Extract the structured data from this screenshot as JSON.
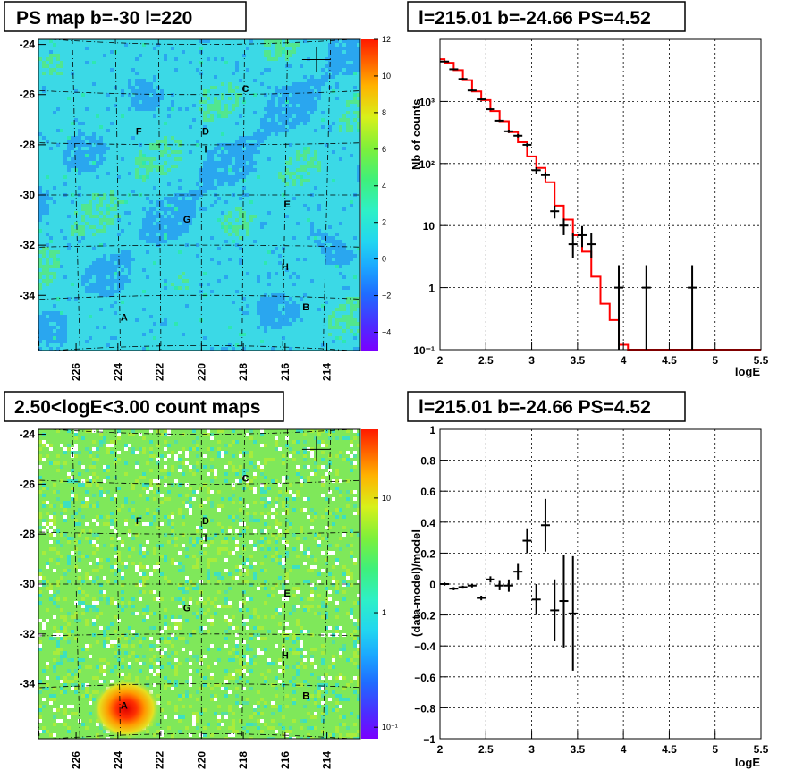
{
  "colors": {
    "map_bg": "#3bd9e6",
    "map_patch": "#2aa6ef",
    "map_green": "#52e68e",
    "count_bg": "#7fe85a",
    "count_hot": "#ff2a00",
    "model_line": "#ff0000",
    "data_marker": "#000000"
  },
  "panels": {
    "tl": {
      "title": "PS map b=-30 l=220"
    },
    "tr": {
      "title": "l=215.01 b=-24.66 PS=4.52"
    },
    "bl": {
      "title": "2.50<logE<3.00 count maps"
    },
    "br": {
      "title": "l=215.01 b=-24.66 PS=4.52"
    }
  },
  "sources": [
    {
      "label": "A",
      "l": 223.7,
      "b": -35.0
    },
    {
      "label": "B",
      "l": 215.0,
      "b": -34.6
    },
    {
      "label": "C",
      "l": 217.9,
      "b": -25.9
    },
    {
      "label": "D",
      "l": 219.8,
      "b": -27.6
    },
    {
      "label": "E",
      "l": 215.9,
      "b": -30.5
    },
    {
      "label": "F",
      "l": 223.0,
      "b": -27.6
    },
    {
      "label": "G",
      "l": 220.7,
      "b": -31.1
    },
    {
      "label": "H",
      "l": 216.0,
      "b": -33.0
    },
    {
      "label": "I",
      "l": 219.8,
      "b": -28.3
    }
  ],
  "chart_data": [
    {
      "type": "heatmap",
      "title": "PS map b=-30 l=220",
      "x_ticks": [
        "226",
        "224",
        "222",
        "220",
        "218",
        "216",
        "214"
      ],
      "y_ticks": [
        "-24",
        "-26",
        "-28",
        "-30",
        "-32",
        "-34"
      ],
      "xlim": [
        227.8,
        212.4
      ],
      "ylim": [
        -36.2,
        -23.8
      ],
      "colorbar_ticks": [
        "12",
        "10",
        "8",
        "6",
        "4",
        "2",
        "0",
        "−2",
        "−4"
      ],
      "colorbar_range": [
        -5,
        12
      ],
      "marker": {
        "l": 214.5,
        "b": -24.6
      }
    },
    {
      "type": "line",
      "title": "l=215.01 b=-24.66 PS=4.52",
      "xlabel": "logE",
      "ylabel": "Nb of counts",
      "xlim": [
        2,
        5.5
      ],
      "ylim": [
        0.1,
        10000
      ],
      "log_y": true,
      "grid": true,
      "x_ticks": [
        "2",
        "2.5",
        "3",
        "3.5",
        "4",
        "4.5",
        "5",
        "5.5"
      ],
      "y_ticks": [
        "10⁻¹",
        "1",
        "10",
        "10²",
        "10³"
      ],
      "model_steps": {
        "edges": [
          2.0,
          2.05,
          2.15,
          2.25,
          2.35,
          2.45,
          2.55,
          2.65,
          2.75,
          2.85,
          2.95,
          3.05,
          3.15,
          3.25,
          3.35,
          3.45,
          3.55,
          3.65,
          3.75,
          3.85,
          3.95,
          4.05,
          4.15,
          5.5
        ],
        "values": [
          4800,
          4200,
          3200,
          2200,
          1450,
          1050,
          700,
          480,
          320,
          220,
          130,
          85,
          50,
          21,
          12.5,
          7,
          3.8,
          1.5,
          0.55,
          0.3,
          0.12,
          0.1,
          0.1
        ]
      },
      "data_points": [
        {
          "x": 2.05,
          "y": 4400,
          "ylo": 4300,
          "yhi": 4500
        },
        {
          "x": 2.15,
          "y": 3300,
          "ylo": 3200,
          "yhi": 3400
        },
        {
          "x": 2.25,
          "y": 2300,
          "ylo": 2200,
          "yhi": 2400
        },
        {
          "x": 2.35,
          "y": 1500,
          "ylo": 1450,
          "yhi": 1560
        },
        {
          "x": 2.45,
          "y": 1080,
          "ylo": 1040,
          "yhi": 1120
        },
        {
          "x": 2.55,
          "y": 750,
          "ylo": 720,
          "yhi": 780
        },
        {
          "x": 2.65,
          "y": 490,
          "ylo": 470,
          "yhi": 510
        },
        {
          "x": 2.75,
          "y": 330,
          "ylo": 310,
          "yhi": 350
        },
        {
          "x": 2.85,
          "y": 280,
          "ylo": 262,
          "yhi": 298
        },
        {
          "x": 2.95,
          "y": 200,
          "ylo": 186,
          "yhi": 214
        },
        {
          "x": 3.05,
          "y": 78,
          "ylo": 69,
          "yhi": 87
        },
        {
          "x": 3.15,
          "y": 65,
          "ylo": 57,
          "yhi": 73
        },
        {
          "x": 3.25,
          "y": 17,
          "ylo": 13,
          "yhi": 21
        },
        {
          "x": 3.35,
          "y": 10,
          "ylo": 7,
          "yhi": 13
        },
        {
          "x": 3.45,
          "y": 5,
          "ylo": 3,
          "yhi": 7.5
        },
        {
          "x": 3.55,
          "y": 7,
          "ylo": 4.5,
          "yhi": 9.8
        },
        {
          "x": 3.65,
          "y": 5,
          "ylo": 3,
          "yhi": 7.5
        },
        {
          "x": 3.95,
          "y": 1,
          "ylo": 0.1,
          "yhi": 2.3
        },
        {
          "x": 4.25,
          "y": 1,
          "ylo": 0.1,
          "yhi": 2.3
        },
        {
          "x": 4.75,
          "y": 1,
          "ylo": 0.1,
          "yhi": 2.3
        }
      ]
    },
    {
      "type": "heatmap",
      "title": "2.50<logE<3.00 count maps",
      "x_ticks": [
        "226",
        "224",
        "222",
        "220",
        "218",
        "216",
        "214"
      ],
      "y_ticks": [
        "-24",
        "-26",
        "-28",
        "-30",
        "-32",
        "-34"
      ],
      "xlim": [
        227.8,
        212.4
      ],
      "ylim": [
        -36.2,
        -23.8
      ],
      "colorbar_ticks": [
        "10",
        "1",
        "10⁻¹"
      ],
      "log_z": true,
      "hotspot": {
        "l": 223.6,
        "b": -35.0
      },
      "marker": {
        "l": 214.5,
        "b": -24.6
      }
    },
    {
      "type": "scatter",
      "title": "l=215.01 b=-24.66 PS=4.52",
      "xlabel": "logE",
      "ylabel": "(data-model)/model",
      "xlim": [
        2,
        5.5
      ],
      "ylim": [
        -1,
        1
      ],
      "grid": true,
      "x_ticks": [
        "2",
        "2.5",
        "3",
        "3.5",
        "4",
        "4.5",
        "5",
        "5.5"
      ],
      "y_ticks": [
        "−1",
        "−0.8",
        "−0.6",
        "−0.4",
        "−0.2",
        "0",
        "0.2",
        "0.4",
        "0.6",
        "0.8",
        "1"
      ],
      "points": [
        {
          "x": 2.05,
          "y": 0.0,
          "err": 0.01
        },
        {
          "x": 2.15,
          "y": -0.03,
          "err": 0.01
        },
        {
          "x": 2.25,
          "y": -0.02,
          "err": 0.01
        },
        {
          "x": 2.35,
          "y": -0.01,
          "err": 0.012
        },
        {
          "x": 2.45,
          "y": -0.09,
          "err": 0.015
        },
        {
          "x": 2.55,
          "y": 0.03,
          "err": 0.02
        },
        {
          "x": 2.65,
          "y": -0.01,
          "err": 0.03
        },
        {
          "x": 2.75,
          "y": -0.01,
          "err": 0.04
        },
        {
          "x": 2.85,
          "y": 0.08,
          "err": 0.05
        },
        {
          "x": 2.95,
          "y": 0.28,
          "err": 0.08
        },
        {
          "x": 3.05,
          "y": -0.1,
          "err": 0.1
        },
        {
          "x": 3.15,
          "y": 0.38,
          "err": 0.17
        },
        {
          "x": 3.25,
          "y": -0.17,
          "err": 0.2
        },
        {
          "x": 3.35,
          "y": -0.11,
          "err": 0.3
        },
        {
          "x": 3.45,
          "y": -0.19,
          "err": 0.37
        }
      ]
    }
  ]
}
